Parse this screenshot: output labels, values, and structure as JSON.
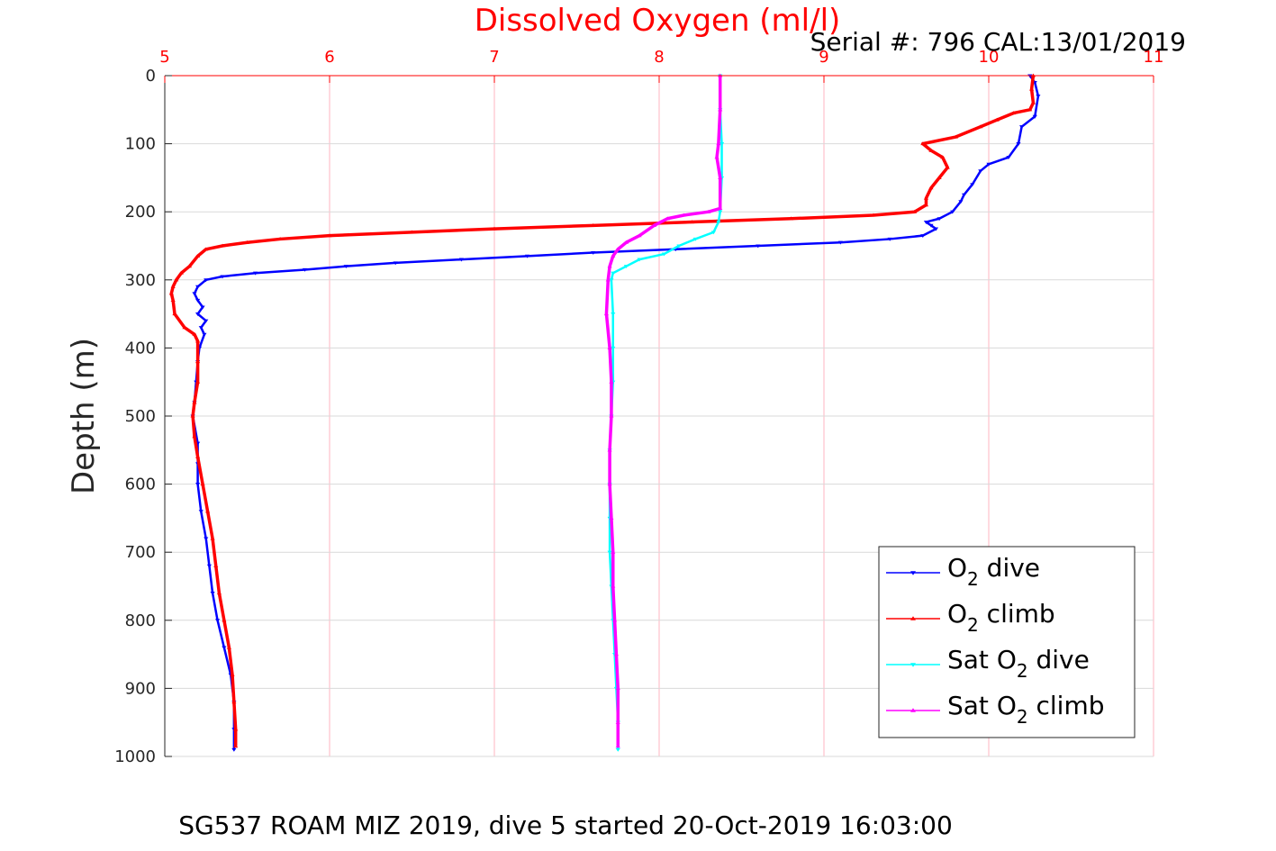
{
  "header": {
    "serial_text": "Serial #: 796  CAL:13/01/2019"
  },
  "footer": {
    "caption": "SG537 ROAM MIZ 2019, dive 5 started 20-Oct-2019 16:03:00"
  },
  "colors": {
    "o2_dive": "#0000ff",
    "o2_climb": "#ff0000",
    "sat_dive": "#00ffff",
    "sat_climb": "#ff00ff",
    "x_axis": "#ff0000",
    "grid_x": "#ffb6c1",
    "grid_y": "#d9d9d9"
  },
  "chart_data": {
    "type": "line",
    "title": "Dissolved Oxygen (ml/l)",
    "xlabel": "Dissolved Oxygen (ml/l)",
    "ylabel": "Depth (m)",
    "xlim": [
      5,
      11
    ],
    "ylim": [
      0,
      1000
    ],
    "y_reversed": true,
    "x_axis_position": "top",
    "x_ticks": [
      "5",
      "6",
      "7",
      "8",
      "9",
      "10",
      "11"
    ],
    "y_ticks": [
      "0",
      "100",
      "200",
      "300",
      "400",
      "500",
      "600",
      "700",
      "800",
      "900",
      "1000"
    ],
    "grid": true,
    "legend_position": "bottom-right",
    "series": [
      {
        "label_main": "O",
        "label_sub": "2",
        "label_tail": " dive",
        "label_pre": "",
        "color": "#0000ff",
        "marker": "down-triangle",
        "points": [
          [
            10.25,
            0
          ],
          [
            10.28,
            10
          ],
          [
            10.3,
            30
          ],
          [
            10.28,
            60
          ],
          [
            10.2,
            75
          ],
          [
            10.18,
            100
          ],
          [
            10.12,
            120
          ],
          [
            10.0,
            130
          ],
          [
            9.95,
            140
          ],
          [
            9.9,
            160
          ],
          [
            9.85,
            175
          ],
          [
            9.83,
            185
          ],
          [
            9.78,
            200
          ],
          [
            9.7,
            210
          ],
          [
            9.62,
            215
          ],
          [
            9.65,
            220
          ],
          [
            9.68,
            225
          ],
          [
            9.6,
            235
          ],
          [
            9.4,
            240
          ],
          [
            9.1,
            245
          ],
          [
            8.6,
            250
          ],
          [
            8.1,
            255
          ],
          [
            7.6,
            260
          ],
          [
            7.2,
            265
          ],
          [
            6.8,
            270
          ],
          [
            6.4,
            275
          ],
          [
            6.1,
            280
          ],
          [
            5.85,
            285
          ],
          [
            5.55,
            290
          ],
          [
            5.35,
            295
          ],
          [
            5.25,
            300
          ],
          [
            5.2,
            310
          ],
          [
            5.18,
            320
          ],
          [
            5.2,
            330
          ],
          [
            5.23,
            340
          ],
          [
            5.2,
            350
          ],
          [
            5.25,
            360
          ],
          [
            5.22,
            370
          ],
          [
            5.24,
            380
          ],
          [
            5.21,
            400
          ],
          [
            5.2,
            420
          ],
          [
            5.19,
            450
          ],
          [
            5.18,
            480
          ],
          [
            5.17,
            500
          ],
          [
            5.2,
            540
          ],
          [
            5.2,
            570
          ],
          [
            5.2,
            600
          ],
          [
            5.22,
            640
          ],
          [
            5.25,
            680
          ],
          [
            5.27,
            720
          ],
          [
            5.29,
            760
          ],
          [
            5.32,
            800
          ],
          [
            5.36,
            840
          ],
          [
            5.4,
            880
          ],
          [
            5.42,
            920
          ],
          [
            5.42,
            960
          ],
          [
            5.42,
            990
          ]
        ]
      },
      {
        "label_main": "O",
        "label_sub": "2",
        "label_tail": " climb",
        "label_pre": "",
        "color": "#ff0000",
        "marker": "up-triangle",
        "points": [
          [
            10.27,
            0
          ],
          [
            10.26,
            20
          ],
          [
            10.27,
            40
          ],
          [
            10.25,
            50
          ],
          [
            10.15,
            55
          ],
          [
            10.05,
            65
          ],
          [
            9.95,
            75
          ],
          [
            9.8,
            90
          ],
          [
            9.6,
            100
          ],
          [
            9.65,
            110
          ],
          [
            9.72,
            120
          ],
          [
            9.75,
            135
          ],
          [
            9.7,
            150
          ],
          [
            9.65,
            165
          ],
          [
            9.62,
            180
          ],
          [
            9.62,
            190
          ],
          [
            9.55,
            200
          ],
          [
            9.3,
            205
          ],
          [
            8.8,
            210
          ],
          [
            8.2,
            215
          ],
          [
            7.6,
            220
          ],
          [
            7.0,
            225
          ],
          [
            6.5,
            230
          ],
          [
            6.0,
            235
          ],
          [
            5.7,
            240
          ],
          [
            5.5,
            245
          ],
          [
            5.35,
            250
          ],
          [
            5.25,
            255
          ],
          [
            5.2,
            265
          ],
          [
            5.15,
            280
          ],
          [
            5.1,
            290
          ],
          [
            5.07,
            300
          ],
          [
            5.05,
            310
          ],
          [
            5.04,
            320
          ],
          [
            5.05,
            330
          ],
          [
            5.06,
            350
          ],
          [
            5.12,
            370
          ],
          [
            5.18,
            380
          ],
          [
            5.2,
            390
          ],
          [
            5.2,
            420
          ],
          [
            5.2,
            450
          ],
          [
            5.18,
            480
          ],
          [
            5.17,
            500
          ],
          [
            5.18,
            530
          ],
          [
            5.2,
            560
          ],
          [
            5.23,
            600
          ],
          [
            5.26,
            640
          ],
          [
            5.29,
            680
          ],
          [
            5.31,
            720
          ],
          [
            5.33,
            760
          ],
          [
            5.36,
            800
          ],
          [
            5.39,
            840
          ],
          [
            5.41,
            880
          ],
          [
            5.42,
            920
          ],
          [
            5.43,
            960
          ],
          [
            5.43,
            985
          ]
        ]
      },
      {
        "label_main": "O",
        "label_sub": "2",
        "label_tail": " dive",
        "label_pre": "Sat ",
        "color": "#00ffff",
        "marker": "down-triangle",
        "points": [
          [
            8.37,
            0
          ],
          [
            8.37,
            50
          ],
          [
            8.38,
            100
          ],
          [
            8.38,
            150
          ],
          [
            8.37,
            200
          ],
          [
            8.36,
            215
          ],
          [
            8.33,
            230
          ],
          [
            8.22,
            240
          ],
          [
            8.12,
            250
          ],
          [
            8.03,
            262
          ],
          [
            7.88,
            270
          ],
          [
            7.8,
            280
          ],
          [
            7.72,
            290
          ],
          [
            7.71,
            300
          ],
          [
            7.72,
            350
          ],
          [
            7.72,
            400
          ],
          [
            7.72,
            450
          ],
          [
            7.71,
            500
          ],
          [
            7.7,
            550
          ],
          [
            7.7,
            600
          ],
          [
            7.7,
            650
          ],
          [
            7.7,
            700
          ],
          [
            7.71,
            750
          ],
          [
            7.72,
            800
          ],
          [
            7.73,
            850
          ],
          [
            7.74,
            900
          ],
          [
            7.75,
            950
          ],
          [
            7.75,
            990
          ]
        ]
      },
      {
        "label_main": "O",
        "label_sub": "2",
        "label_tail": " climb",
        "label_pre": "Sat ",
        "color": "#ff00ff",
        "marker": "up-triangle",
        "points": [
          [
            8.37,
            0
          ],
          [
            8.37,
            50
          ],
          [
            8.36,
            100
          ],
          [
            8.35,
            120
          ],
          [
            8.37,
            150
          ],
          [
            8.37,
            195
          ],
          [
            8.3,
            200
          ],
          [
            8.15,
            205
          ],
          [
            8.05,
            210
          ],
          [
            7.97,
            220
          ],
          [
            7.88,
            235
          ],
          [
            7.8,
            245
          ],
          [
            7.75,
            255
          ],
          [
            7.72,
            265
          ],
          [
            7.7,
            280
          ],
          [
            7.69,
            300
          ],
          [
            7.68,
            350
          ],
          [
            7.7,
            400
          ],
          [
            7.71,
            450
          ],
          [
            7.71,
            500
          ],
          [
            7.7,
            550
          ],
          [
            7.7,
            600
          ],
          [
            7.71,
            650
          ],
          [
            7.72,
            700
          ],
          [
            7.72,
            750
          ],
          [
            7.73,
            800
          ],
          [
            7.74,
            850
          ],
          [
            7.75,
            900
          ],
          [
            7.75,
            950
          ],
          [
            7.75,
            985
          ]
        ]
      }
    ]
  }
}
